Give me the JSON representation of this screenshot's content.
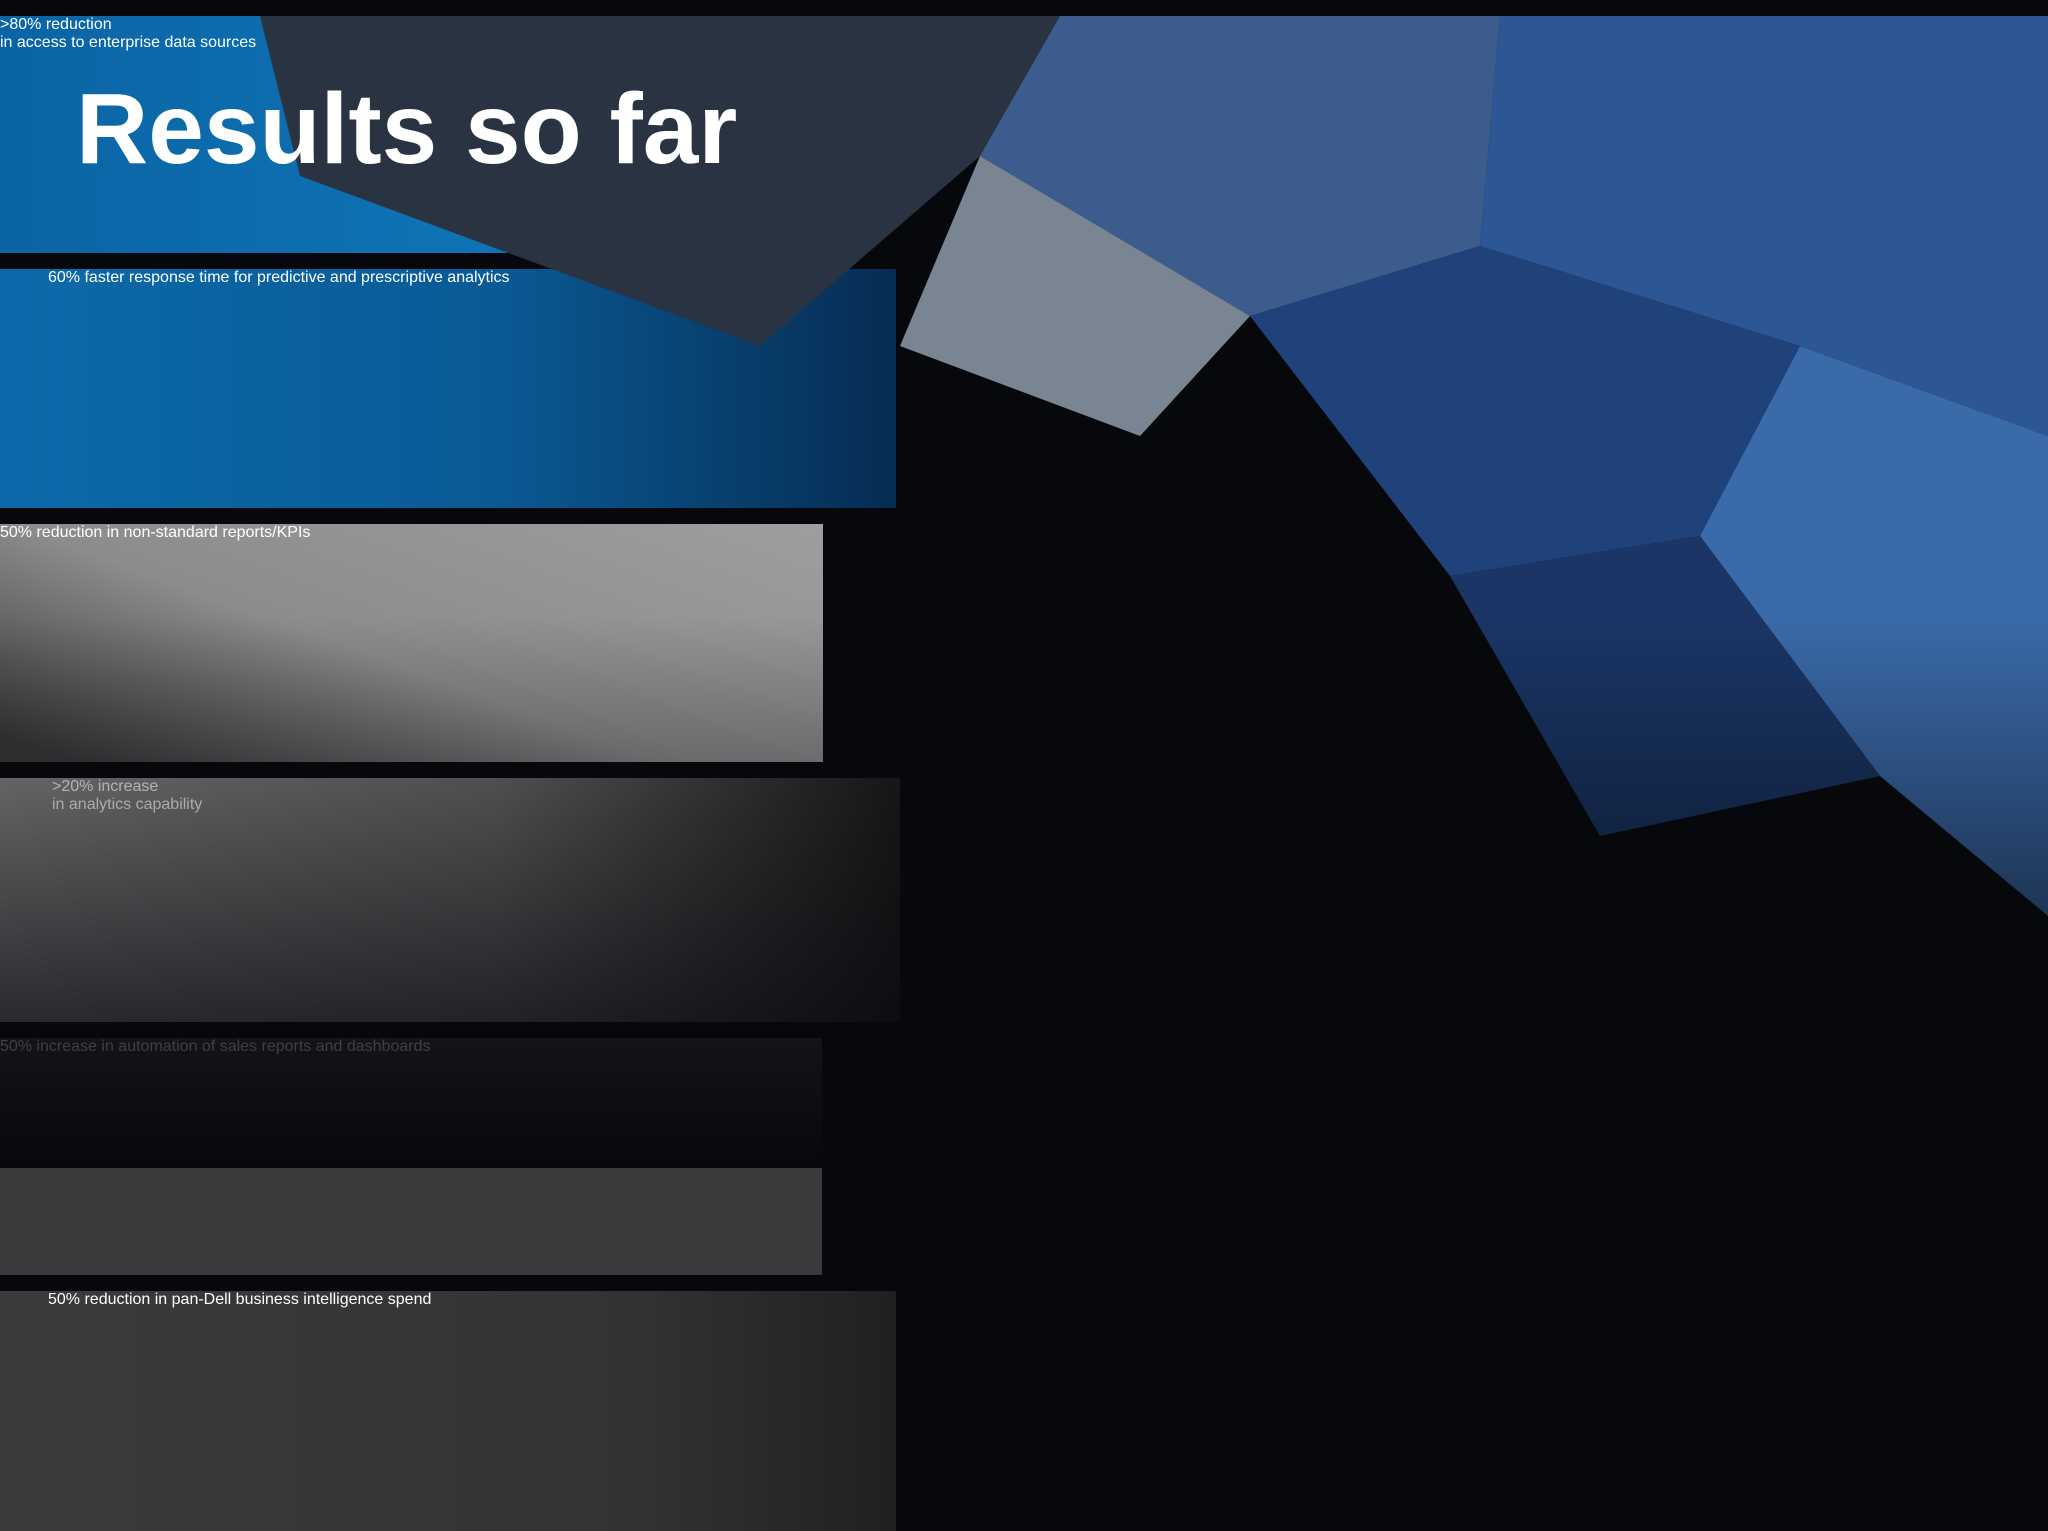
{
  "slide": {
    "title": "Results so far",
    "cards": [
      {
        "headline": ">80% reduction",
        "text": "in access to enterprise data sources"
      },
      {
        "headline": "60% faster response time",
        "text": "for predictive and prescriptive analytics"
      },
      {
        "headline": "50% reduction",
        "text": "in non-standard reports/KPIs"
      },
      {
        "headline": ">20% increase",
        "text": "in analytics capability"
      },
      {
        "headline": "50% increase",
        "text": "in automation of sales reports and dashboards"
      },
      {
        "headline": "50% reduction",
        "text": "in pan-Dell business intelligence spend"
      }
    ]
  }
}
